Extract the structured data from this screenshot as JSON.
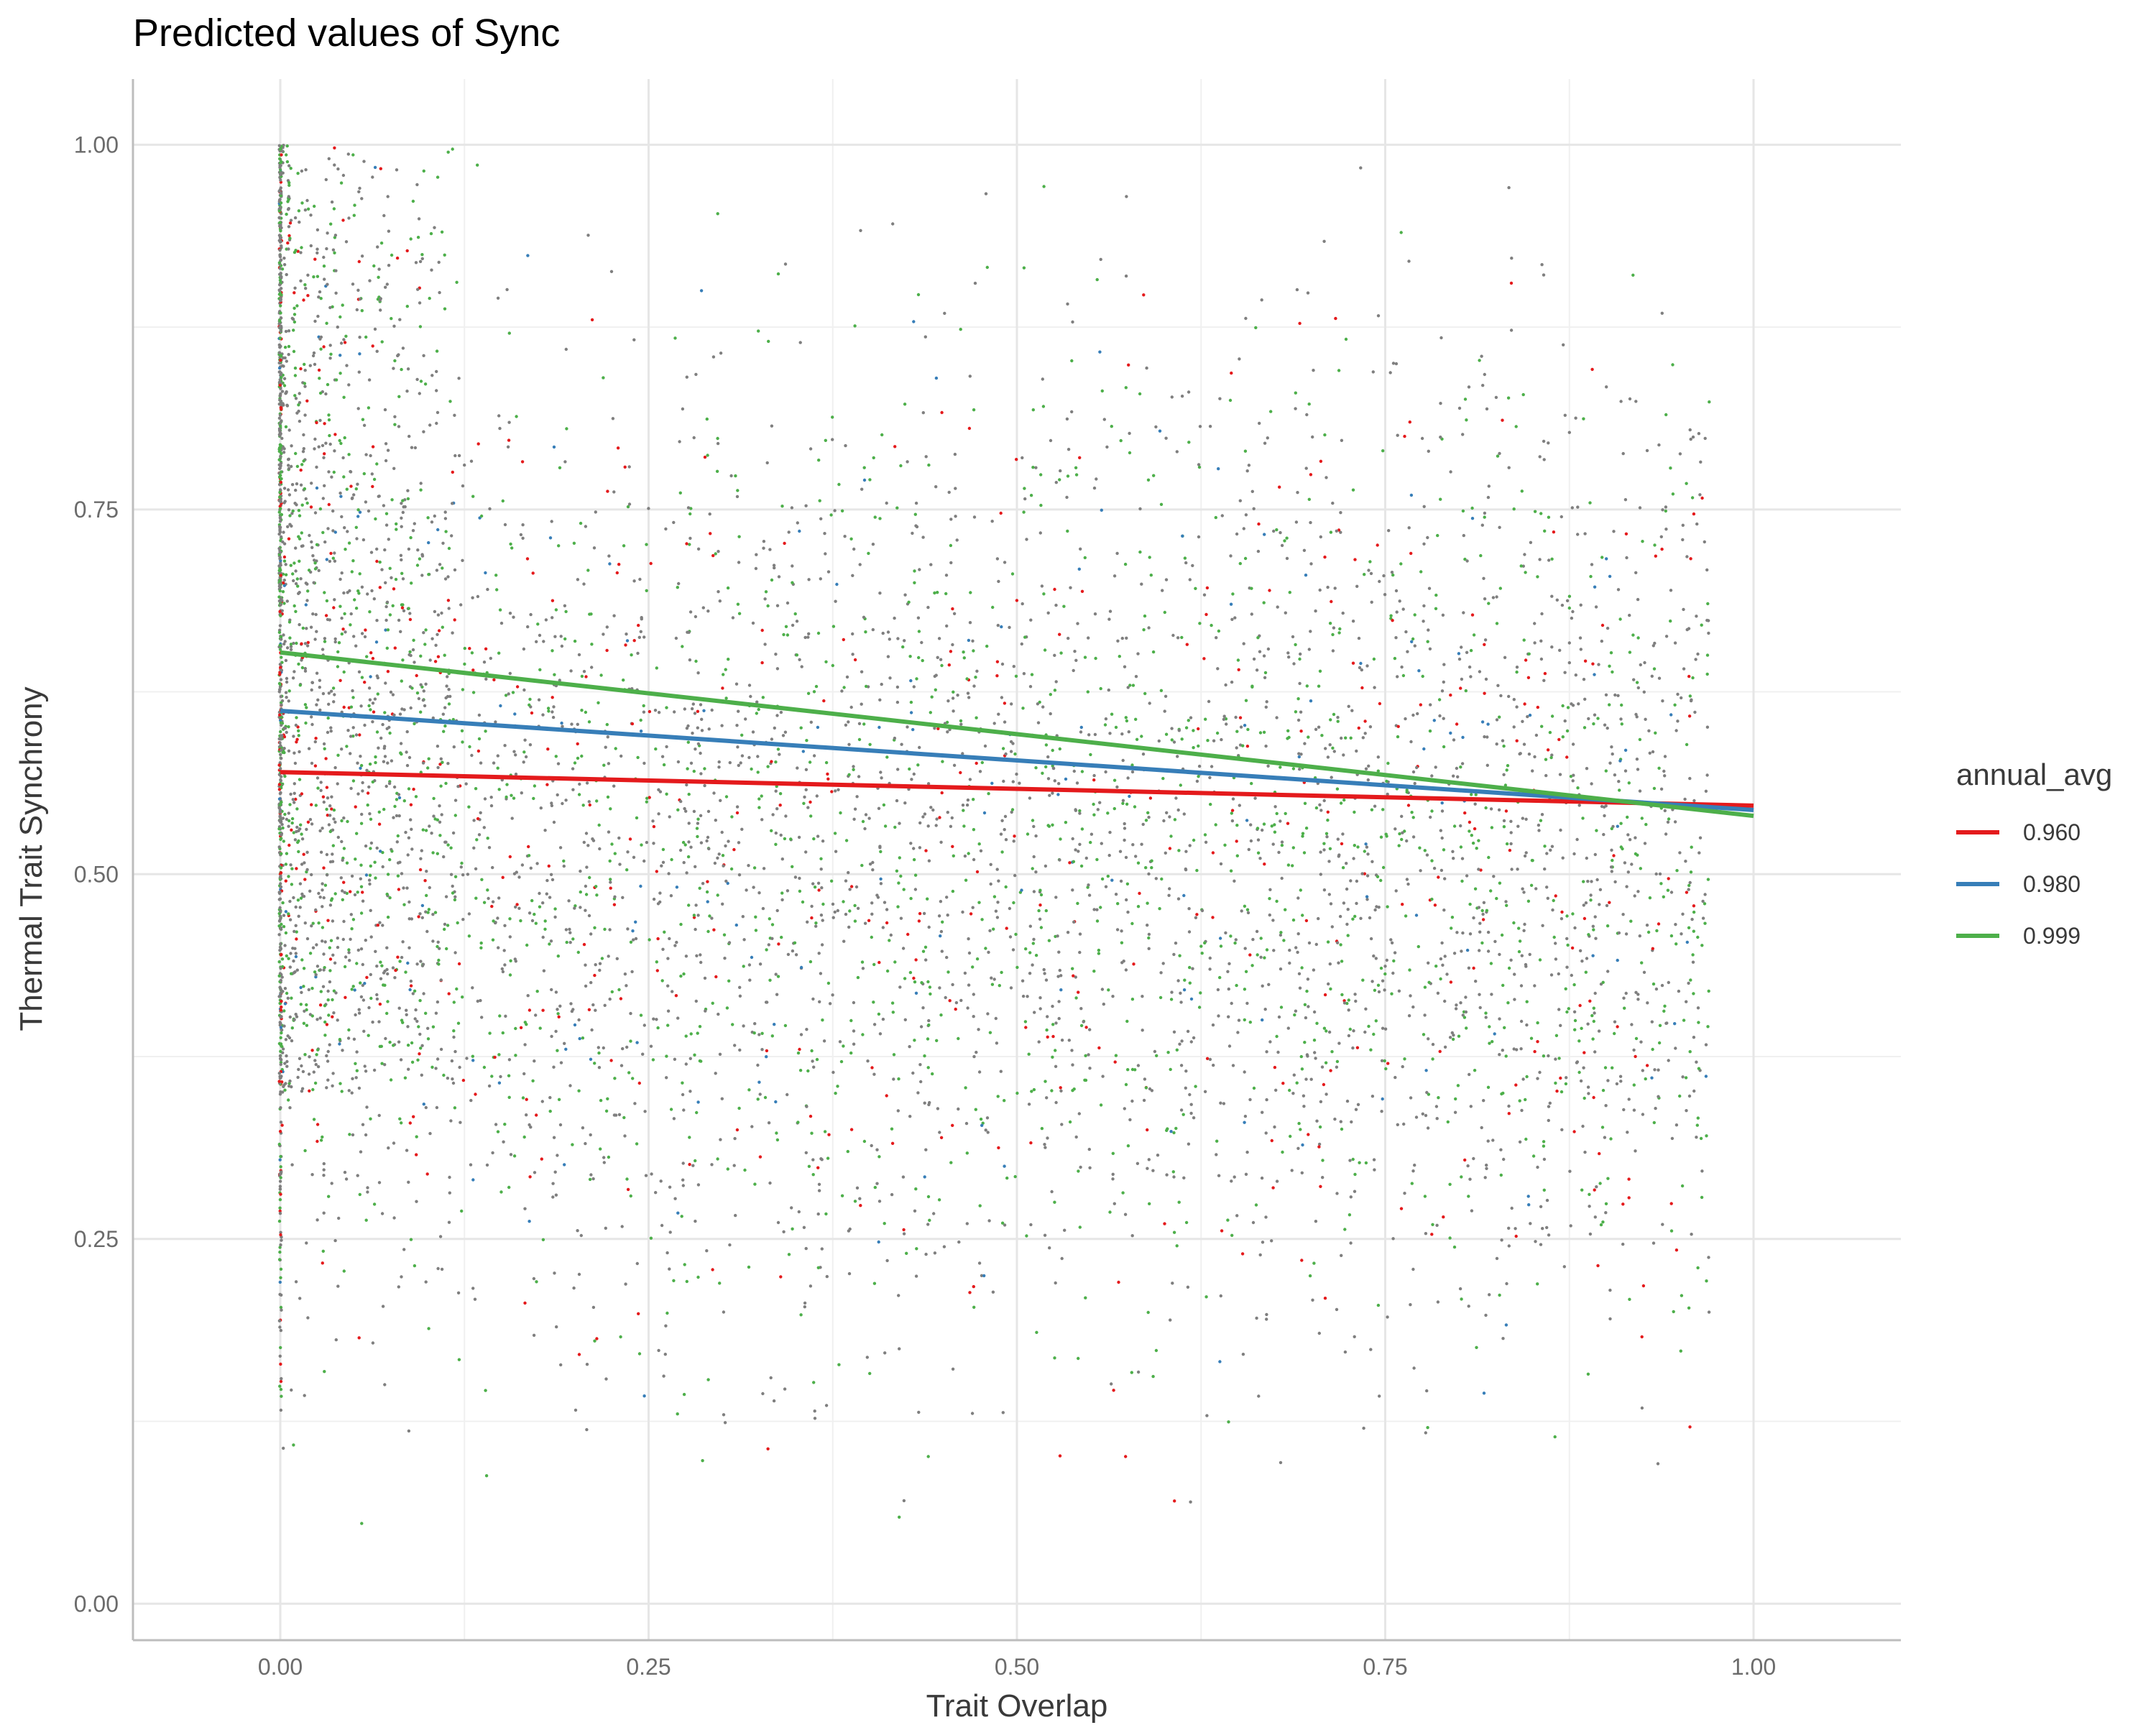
{
  "chart_data": {
    "type": "scatter",
    "title": "Predicted values of Sync",
    "xlabel": "Trait Overlap",
    "ylabel": "Thermal Trait Synchrony",
    "xlim": [
      -0.1,
      1.1
    ],
    "ylim": [
      -0.025,
      1.045
    ],
    "x_ticks": [
      0.0,
      0.25,
      0.5,
      0.75,
      1.0
    ],
    "x_tick_labels": [
      "0.00",
      "0.25",
      "0.50",
      "0.75",
      "1.00"
    ],
    "y_ticks": [
      0.0,
      0.25,
      0.5,
      0.75,
      1.0
    ],
    "y_tick_labels": [
      "0.00",
      "0.25",
      "0.50",
      "0.75",
      "1.00"
    ],
    "grid": true,
    "legend": {
      "title": "annual_avg",
      "position": "right",
      "entries": [
        {
          "label": "0.960",
          "color": "#e41a1c"
        },
        {
          "label": "0.980",
          "color": "#377eb8"
        },
        {
          "label": "0.999",
          "color": "#4daf4a"
        }
      ]
    },
    "series": [
      {
        "name": "0.960",
        "type": "line",
        "color": "#e41a1c",
        "x": [
          0.0,
          1.0
        ],
        "y": [
          0.57,
          0.547
        ]
      },
      {
        "name": "0.980",
        "type": "line",
        "color": "#377eb8",
        "x": [
          0.0,
          1.0
        ],
        "y": [
          0.612,
          0.544
        ]
      },
      {
        "name": "0.999",
        "type": "line",
        "color": "#4daf4a",
        "x": [
          0.0,
          1.0
        ],
        "y": [
          0.652,
          0.54
        ]
      }
    ],
    "scatter": {
      "colors": {
        "gray": "#7f7f7f",
        "green": "#4daf4a",
        "red": "#e41a1c",
        "blue": "#377eb8"
      },
      "x_range": [
        0.0,
        0.97
      ],
      "y_range": [
        0.02,
        1.0
      ],
      "point_count": 6000,
      "x0_stack_count": 600
    }
  }
}
